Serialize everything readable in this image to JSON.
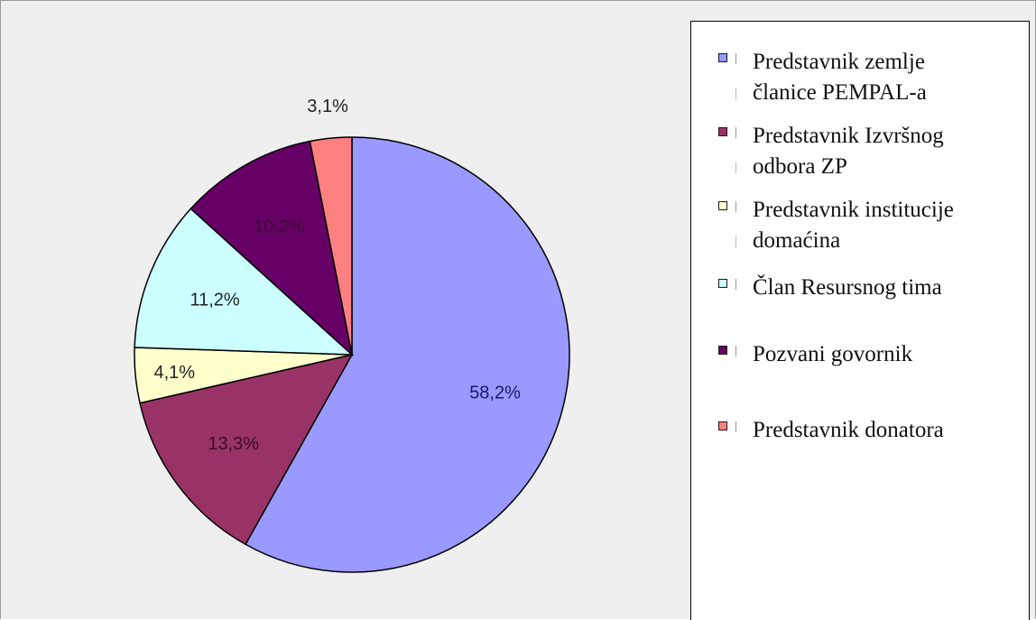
{
  "chart_data": {
    "type": "pie",
    "slices": [
      {
        "label": "Predstavnik zemlje\nčlanice PEMPAL-a",
        "value": 58.2,
        "value_label": "58,2%",
        "color": "#9999ff"
      },
      {
        "label": "Predstavnik Izvršnog\nodbora ZP",
        "value": 13.3,
        "value_label": "13,3%",
        "color": "#993366"
      },
      {
        "label": "Predstavnik institucije\ndomaćina",
        "value": 4.1,
        "value_label": "4,1%",
        "color": "#ffffcc"
      },
      {
        "label": "Član Resursnog tima",
        "value": 11.2,
        "value_label": "11,2%",
        "color": "#ccffff"
      },
      {
        "label": "Pozvani govornik",
        "value": 10.2,
        "value_label": "10,2%",
        "color": "#660066"
      },
      {
        "label": "Predstavnik donatora",
        "value": 3.1,
        "value_label": "3,1%",
        "color": "#ff8080"
      }
    ],
    "start_angle_deg": 0,
    "direction": "clockwise",
    "legend_position": "right"
  }
}
